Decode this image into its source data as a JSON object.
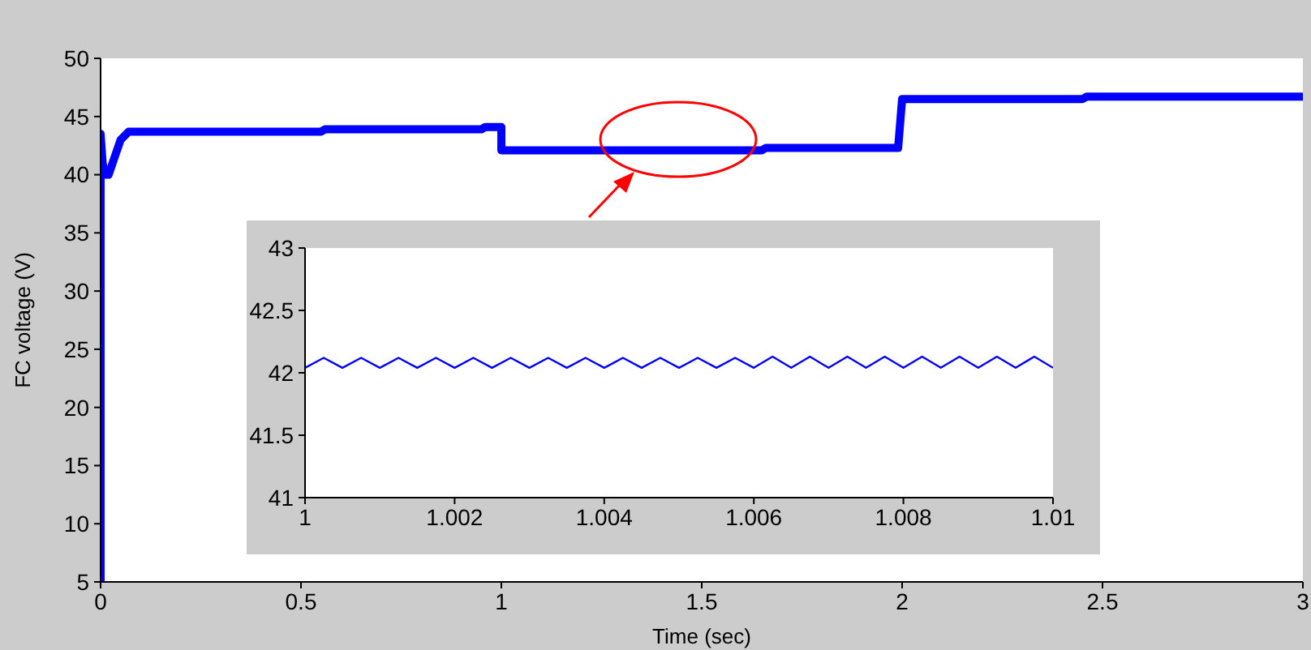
{
  "chart_data": [
    {
      "type": "line",
      "xlabel": "Time (sec)",
      "ylabel": "FC voltage (V)",
      "xlim": [
        0,
        3
      ],
      "ylim": [
        5,
        50
      ],
      "xticks": [
        0,
        0.5,
        1,
        1.5,
        2,
        2.5,
        3
      ],
      "yticks": [
        5,
        10,
        15,
        20,
        25,
        30,
        35,
        40,
        45,
        50
      ],
      "series": [
        {
          "color": "#0000ff",
          "x": [
            0,
            0,
            0.005,
            0.01,
            0.02,
            0.03,
            0.05,
            0.07,
            0.1,
            0.55,
            0.56,
            0.95,
            0.96,
            1.0,
            1.0,
            1.65,
            1.66,
            1.99,
            2.0,
            2.45,
            2.46,
            3
          ],
          "values": [
            5,
            43.5,
            41,
            40,
            40,
            41,
            43,
            43.7,
            43.7,
            43.7,
            43.9,
            43.9,
            44.1,
            44.1,
            42.1,
            42.1,
            42.3,
            42.3,
            46.5,
            46.5,
            46.7,
            46.7
          ]
        }
      ]
    },
    {
      "type": "line",
      "xlim": [
        1,
        1.01
      ],
      "ylim": [
        41,
        43
      ],
      "xticks": [
        1,
        1.002,
        1.004,
        1.006,
        1.008,
        1.01
      ],
      "yticks": [
        41,
        41.5,
        42,
        42.5,
        43
      ],
      "series": [
        {
          "color": "#0000ff",
          "x": [
            1,
            1.00025,
            1.0005,
            1.00075,
            1.001,
            1.00125,
            1.0015,
            1.00175,
            1.002,
            1.00225,
            1.0025,
            1.00275,
            1.003,
            1.00325,
            1.0035,
            1.00375,
            1.004,
            1.00425,
            1.0045,
            1.00475,
            1.005,
            1.00525,
            1.0055,
            1.00575,
            1.006,
            1.00625,
            1.0065,
            1.00675,
            1.007,
            1.00725,
            1.0075,
            1.00775,
            1.008,
            1.00825,
            1.0085,
            1.00875,
            1.009,
            1.00925,
            1.0095,
            1.00975,
            1.01
          ],
          "values": [
            42.04,
            42.12,
            42.04,
            42.12,
            42.04,
            42.12,
            42.04,
            42.12,
            42.04,
            42.12,
            42.04,
            42.12,
            42.04,
            42.12,
            42.04,
            42.12,
            42.04,
            42.12,
            42.04,
            42.12,
            42.04,
            42.12,
            42.04,
            42.12,
            42.04,
            42.13,
            42.04,
            42.13,
            42.04,
            42.13,
            42.04,
            42.13,
            42.04,
            42.13,
            42.04,
            42.13,
            42.04,
            42.13,
            42.04,
            42.13,
            42.04
          ]
        }
      ]
    }
  ]
}
